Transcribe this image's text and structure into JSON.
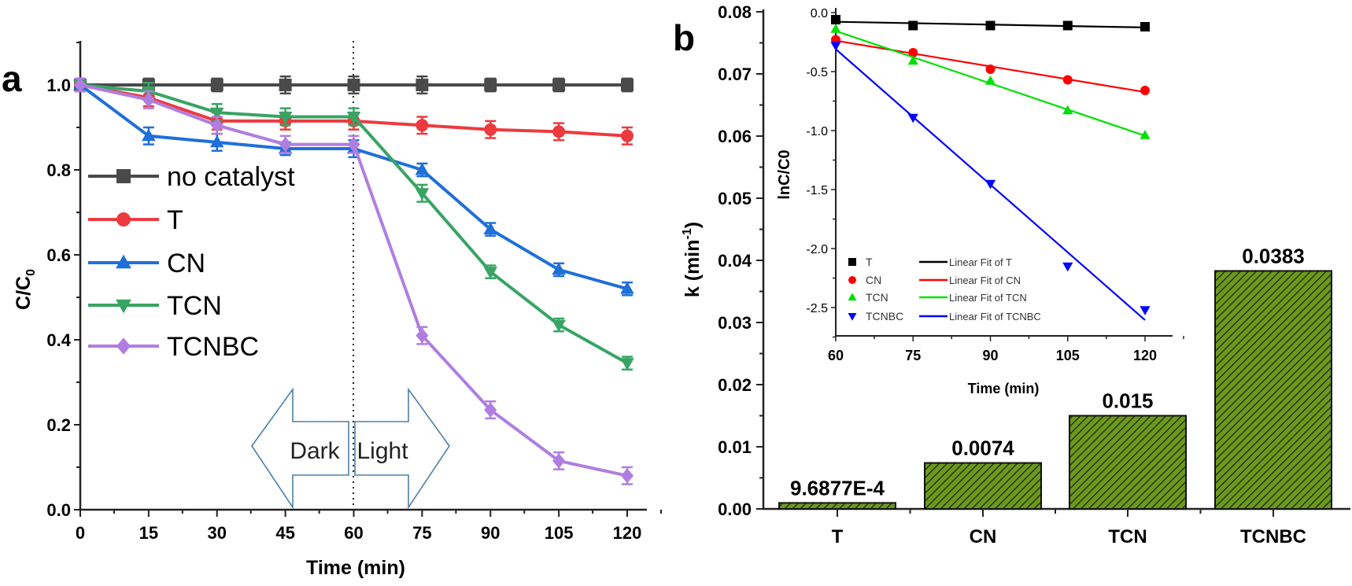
{
  "chart_data": [
    {
      "panel_label": "a",
      "type": "line",
      "xlabel": "Time (min)",
      "ylabel": "C/C0",
      "xlim": [
        0,
        125
      ],
      "ylim": [
        0,
        1.1
      ],
      "xticks": [
        0,
        15,
        30,
        45,
        60,
        75,
        90,
        105,
        120
      ],
      "yticks": [
        "0.0",
        "0.2",
        "0.4",
        "0.6",
        "0.8",
        "1.0"
      ],
      "grid": false,
      "legend_position": "left-middle",
      "x": [
        0,
        15,
        30,
        45,
        60,
        75,
        90,
        105,
        120
      ],
      "series": [
        {
          "name": "no catalyst",
          "marker": "square",
          "color": "#4a4a4a",
          "values": [
            1.0,
            1.0,
            1.0,
            1.0,
            1.0,
            1.0,
            1.0,
            1.0,
            1.0
          ],
          "error": [
            0.015,
            0.015,
            0.015,
            0.02,
            0.02,
            0.02,
            0.015,
            0.015,
            0.015
          ]
        },
        {
          "name": "T",
          "marker": "circle",
          "color": "#ec3b3f",
          "values": [
            1.0,
            0.97,
            0.915,
            0.915,
            0.915,
            0.905,
            0.895,
            0.89,
            0.88
          ],
          "error": [
            0.015,
            0.02,
            0.02,
            0.02,
            0.02,
            0.02,
            0.02,
            0.02,
            0.02
          ]
        },
        {
          "name": "CN",
          "marker": "triangle-up",
          "color": "#1f6fd9",
          "values": [
            1.0,
            0.88,
            0.865,
            0.85,
            0.85,
            0.8,
            0.66,
            0.565,
            0.52
          ],
          "error": [
            0.015,
            0.02,
            0.02,
            0.015,
            0.02,
            0.015,
            0.015,
            0.015,
            0.015
          ]
        },
        {
          "name": "TCN",
          "marker": "triangle-down",
          "color": "#38a464",
          "values": [
            1.0,
            0.985,
            0.935,
            0.925,
            0.925,
            0.745,
            0.56,
            0.435,
            0.345
          ],
          "error": [
            0.015,
            0.02,
            0.02,
            0.02,
            0.02,
            0.02,
            0.015,
            0.015,
            0.015
          ]
        },
        {
          "name": "TCNBC",
          "marker": "diamond",
          "color": "#b07ee0",
          "values": [
            1.0,
            0.965,
            0.905,
            0.86,
            0.86,
            0.41,
            0.235,
            0.115,
            0.08
          ],
          "error": [
            0.015,
            0.02,
            0.02,
            0.02,
            0.02,
            0.02,
            0.02,
            0.02,
            0.02
          ]
        }
      ],
      "annotations": {
        "divider_at": 60,
        "dark_label": "Dark",
        "light_label": "Light",
        "arrow_color": "#4f7ea8"
      }
    },
    {
      "panel_label": "b",
      "type": "bar",
      "ylabel": "k (min",
      "ylabel_superscript": "-1",
      "ylabel_close": ")",
      "ylim": [
        0,
        0.08
      ],
      "yticks": [
        "0.00",
        "0.01",
        "0.02",
        "0.03",
        "0.04",
        "0.05",
        "0.06",
        "0.07",
        "0.08"
      ],
      "categories": [
        "T",
        "CN",
        "TCN",
        "TCNBC"
      ],
      "values": [
        0.00096877,
        0.0074,
        0.015,
        0.0383
      ],
      "data_labels": [
        "9.6877E-4",
        "0.0074",
        "0.015",
        "0.0383"
      ],
      "bar_color": "#6b9a1a",
      "hatch_color": "#1a1a1a",
      "grid": false
    },
    {
      "type": "scatter",
      "inset_of": "b",
      "xlabel": "Time (min)",
      "ylabel": "lnC/C0",
      "xlim": [
        60,
        125
      ],
      "ylim": [
        -2.75,
        0.0
      ],
      "xticks": [
        60,
        75,
        90,
        105,
        120
      ],
      "yticks": [
        "0.0",
        "-0.5",
        "-1.0",
        "-1.5",
        "-2.0",
        "-2.5"
      ],
      "legend_position": "bottom-left",
      "x": [
        60,
        75,
        90,
        105,
        120
      ],
      "series": [
        {
          "name": "T",
          "fit_name": "Linear Fit of T",
          "marker": "square",
          "color": "#000000",
          "values": [
            -0.06,
            -0.11,
            -0.11,
            -0.11,
            -0.12
          ]
        },
        {
          "name": "CN",
          "fit_name": "Linear Fit of CN",
          "marker": "circle",
          "color": "#ff0000",
          "values": [
            -0.23,
            -0.34,
            -0.48,
            -0.57,
            -0.66
          ]
        },
        {
          "name": "TCN",
          "fit_name": "Linear Fit of TCN",
          "marker": "triangle-up",
          "color": "#00e000",
          "values": [
            -0.14,
            -0.41,
            -0.58,
            -0.83,
            -1.04
          ]
        },
        {
          "name": "TCNBC",
          "fit_name": "Linear Fit of TCNBC",
          "marker": "triangle-down",
          "color": "#0000ff",
          "values": [
            -0.28,
            -0.89,
            -1.45,
            -2.15,
            -2.52
          ]
        }
      ]
    }
  ]
}
